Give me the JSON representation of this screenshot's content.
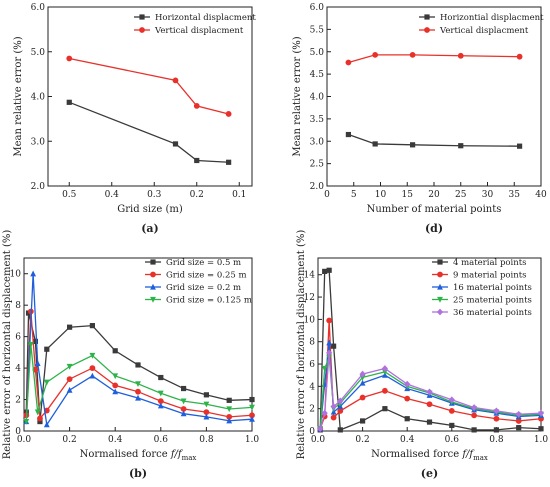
{
  "colors": {
    "black": "#3a3a3a",
    "red": "#e8312a",
    "blue": "#1f5fdc",
    "green": "#2db34a",
    "purple": "#b070e0"
  },
  "chart_data": [
    {
      "id": "a",
      "type": "line",
      "panel_label": "(a)",
      "xlabel": "Grid size (m)",
      "ylabel": "Mean relative error (%)",
      "xlim": [
        0.55,
        0.07
      ],
      "ylim": [
        2.0,
        6.0
      ],
      "xticks": [
        0.5,
        0.4,
        0.3,
        0.2,
        0.1
      ],
      "xtick_labels": [
        "0.5",
        "0.4",
        "0.3",
        "0.2",
        "0.1"
      ],
      "yticks": [
        2.0,
        3.0,
        4.0,
        5.0,
        6.0
      ],
      "ytick_labels": [
        "2.0",
        "3.0",
        "4.0",
        "5.0",
        "6.0"
      ],
      "legend_position": "top-right",
      "series": [
        {
          "name": "Horizontal displacment",
          "color": "black",
          "marker": "square",
          "x": [
            0.5,
            0.25,
            0.2,
            0.125
          ],
          "y": [
            3.87,
            2.94,
            2.57,
            2.53
          ]
        },
        {
          "name": "Vertical displacment",
          "color": "red",
          "marker": "circle",
          "x": [
            0.5,
            0.25,
            0.2,
            0.125
          ],
          "y": [
            4.85,
            4.36,
            3.79,
            3.61
          ]
        }
      ]
    },
    {
      "id": "d",
      "type": "line",
      "panel_label": "(d)",
      "xlabel": "Number of material points",
      "ylabel": "Mean relative error (%)",
      "xlim": [
        0,
        40
      ],
      "ylim": [
        2.0,
        6.0
      ],
      "xticks": [
        0,
        5,
        10,
        15,
        20,
        25,
        30,
        35,
        40
      ],
      "xtick_labels": [
        "0",
        "5",
        "10",
        "15",
        "20",
        "25",
        "30",
        "35",
        "40"
      ],
      "yticks": [
        2.0,
        2.5,
        3.0,
        3.5,
        4.0,
        4.5,
        5.0,
        5.5,
        6.0
      ],
      "ytick_labels": [
        "2.0",
        "2.5",
        "3.0",
        "3.5",
        "4.0",
        "4.5",
        "5.0",
        "5.5",
        "6.0"
      ],
      "legend_position": "top-right",
      "series": [
        {
          "name": "Horizontial displacment",
          "color": "black",
          "marker": "square",
          "x": [
            4,
            9,
            16,
            25,
            36
          ],
          "y": [
            3.15,
            2.94,
            2.92,
            2.9,
            2.89
          ]
        },
        {
          "name": "Vertical displacment",
          "color": "red",
          "marker": "circle",
          "x": [
            4,
            9,
            16,
            25,
            36
          ],
          "y": [
            4.76,
            4.93,
            4.93,
            4.91,
            4.89
          ]
        }
      ]
    },
    {
      "id": "b",
      "type": "line",
      "panel_label": "(b)",
      "xlabel": "Normalised force ",
      "xlabel_italic": "f/f",
      "xlabel_sub": "max",
      "ylabel": "Relative error of horizontal displacement (%)",
      "xlim": [
        0,
        1.0
      ],
      "ylim": [
        0,
        11
      ],
      "xticks": [
        0,
        0.2,
        0.4,
        0.6,
        0.8,
        1.0
      ],
      "xtick_labels": [
        "0.0",
        "0.2",
        "0.4",
        "0.6",
        "0.8",
        "1.0"
      ],
      "yticks": [
        0,
        2,
        4,
        6,
        8,
        10
      ],
      "ytick_labels": [
        "0",
        "2",
        "4",
        "6",
        "8",
        "10"
      ],
      "legend_position": "top-right",
      "series": [
        {
          "name": "Grid size = 0.5 m",
          "color": "black",
          "marker": "square",
          "x": [
            0.01,
            0.02,
            0.05,
            0.07,
            0.1,
            0.2,
            0.3,
            0.4,
            0.5,
            0.6,
            0.7,
            0.8,
            0.9,
            1.0
          ],
          "y": [
            1.2,
            7.5,
            5.7,
            0.6,
            5.2,
            6.6,
            6.7,
            5.1,
            4.2,
            3.4,
            2.7,
            2.3,
            1.95,
            2.0
          ]
        },
        {
          "name": "Grid size = 0.25 m",
          "color": "red",
          "marker": "circle",
          "x": [
            0.01,
            0.03,
            0.05,
            0.07,
            0.1,
            0.2,
            0.3,
            0.4,
            0.5,
            0.6,
            0.7,
            0.8,
            0.9,
            1.0
          ],
          "y": [
            1.0,
            7.6,
            3.9,
            0.8,
            1.3,
            3.3,
            4.0,
            2.9,
            2.5,
            1.9,
            1.4,
            1.2,
            0.9,
            1.0
          ]
        },
        {
          "name": "Grid size = 0.2 m",
          "color": "blue",
          "marker": "triangle",
          "x": [
            0.01,
            0.04,
            0.06,
            0.1,
            0.2,
            0.3,
            0.4,
            0.5,
            0.6,
            0.7,
            0.8,
            0.9,
            1.0
          ],
          "y": [
            0.6,
            10.0,
            4.3,
            0.4,
            2.6,
            3.5,
            2.5,
            2.1,
            1.6,
            1.1,
            0.9,
            0.65,
            0.75
          ]
        },
        {
          "name": "Grid size = 0.125 m",
          "color": "green",
          "marker": "triangle-down",
          "x": [
            0.01,
            0.03,
            0.06,
            0.1,
            0.2,
            0.3,
            0.4,
            0.5,
            0.6,
            0.7,
            0.8,
            0.9,
            1.0
          ],
          "y": [
            0.6,
            5.5,
            1.2,
            3.1,
            4.1,
            4.8,
            3.5,
            3.0,
            2.4,
            1.9,
            1.7,
            1.4,
            1.5
          ]
        }
      ]
    },
    {
      "id": "e",
      "type": "line",
      "panel_label": "(e)",
      "xlabel": "Normalised force ",
      "xlabel_italic": "f/f",
      "xlabel_sub": "max",
      "ylabel": "Relative error of horizontal displacement (%)",
      "xlim": [
        0,
        1.0
      ],
      "ylim": [
        0,
        15.5
      ],
      "xticks": [
        0,
        0.2,
        0.4,
        0.6,
        0.8,
        1.0
      ],
      "xtick_labels": [
        "0.0",
        "0.2",
        "0.4",
        "0.6",
        "0.8",
        "1.0"
      ],
      "yticks": [
        0,
        2,
        4,
        6,
        8,
        10,
        12,
        14
      ],
      "ytick_labels": [
        "0",
        "2",
        "4",
        "6",
        "8",
        "10",
        "12",
        "14"
      ],
      "legend_position": "top-right",
      "series": [
        {
          "name": "4 material points",
          "color": "black",
          "marker": "square",
          "x": [
            0.01,
            0.03,
            0.05,
            0.07,
            0.1,
            0.2,
            0.3,
            0.4,
            0.5,
            0.6,
            0.7,
            0.8,
            0.9,
            1.0
          ],
          "y": [
            0.1,
            14.3,
            14.4,
            7.6,
            0.1,
            0.9,
            2.0,
            1.1,
            0.8,
            0.5,
            0.1,
            0.1,
            0.3,
            0.2
          ]
        },
        {
          "name": "9 material points",
          "color": "red",
          "marker": "circle",
          "x": [
            0.01,
            0.03,
            0.05,
            0.07,
            0.1,
            0.2,
            0.3,
            0.4,
            0.5,
            0.6,
            0.7,
            0.8,
            0.9,
            1.0
          ],
          "y": [
            0.2,
            1.3,
            9.9,
            1.2,
            1.8,
            3.0,
            3.6,
            2.9,
            2.4,
            1.8,
            1.4,
            1.1,
            0.9,
            1.1
          ]
        },
        {
          "name": "16 material points",
          "color": "blue",
          "marker": "triangle",
          "x": [
            0.01,
            0.03,
            0.05,
            0.07,
            0.1,
            0.2,
            0.3,
            0.4,
            0.5,
            0.6,
            0.7,
            0.8,
            0.9,
            1.0
          ],
          "y": [
            0.2,
            4.2,
            7.9,
            1.7,
            2.2,
            4.3,
            5.0,
            3.8,
            3.2,
            2.5,
            1.9,
            1.6,
            1.3,
            1.4
          ]
        },
        {
          "name": "25 material points",
          "color": "green",
          "marker": "triangle-down",
          "x": [
            0.01,
            0.03,
            0.05,
            0.07,
            0.1,
            0.2,
            0.3,
            0.4,
            0.5,
            0.6,
            0.7,
            0.8,
            0.9,
            1.0
          ],
          "y": [
            0.2,
            5.6,
            6.6,
            2.0,
            2.5,
            4.8,
            5.3,
            4.0,
            3.4,
            2.6,
            2.0,
            1.7,
            1.4,
            1.5
          ]
        },
        {
          "name": "36 material points",
          "color": "purple",
          "marker": "diamond",
          "x": [
            0.01,
            0.03,
            0.05,
            0.07,
            0.1,
            0.2,
            0.3,
            0.4,
            0.5,
            0.6,
            0.7,
            0.8,
            0.9,
            1.0
          ],
          "y": [
            0.2,
            1.6,
            7.0,
            2.2,
            2.7,
            5.1,
            5.6,
            4.2,
            3.5,
            2.8,
            2.1,
            1.8,
            1.5,
            1.6
          ]
        }
      ]
    }
  ]
}
